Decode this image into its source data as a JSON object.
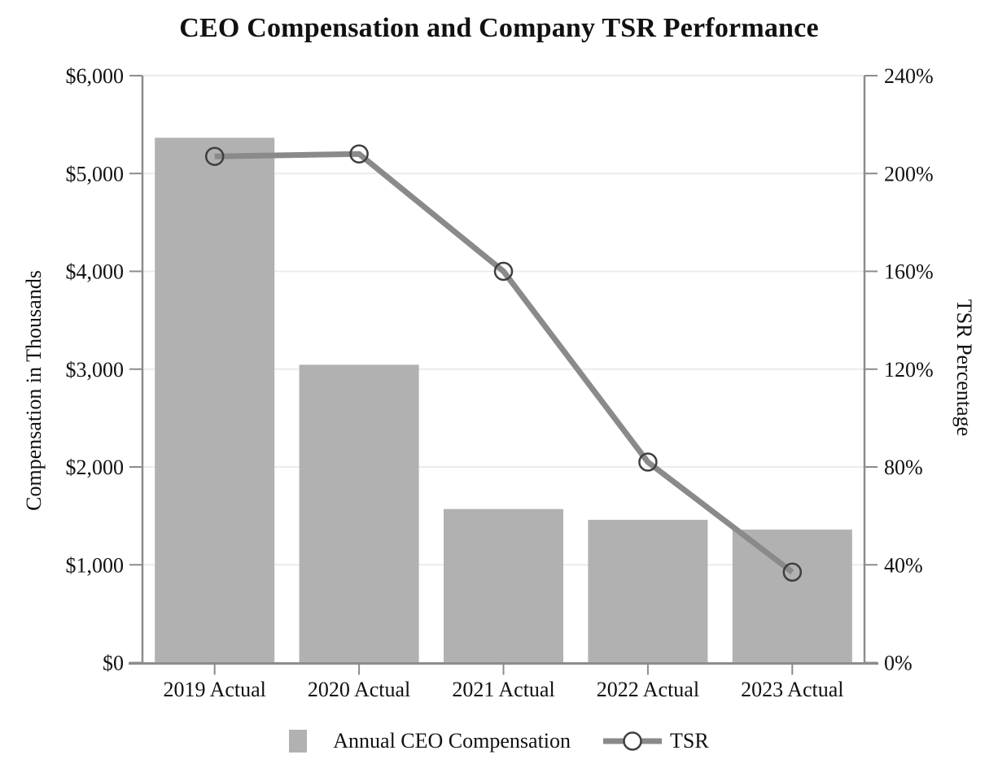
{
  "title": "CEO Compensation and Company TSR Performance",
  "chart_data": {
    "type": "combo",
    "title": "CEO Compensation and Company TSR Performance",
    "categories": [
      "2019 Actual",
      "2020 Actual",
      "2021 Actual",
      "2022 Actual",
      "2023 Actual"
    ],
    "series": [
      {
        "name": "Annual CEO Compensation",
        "type": "bar",
        "axis": "left",
        "units": "USD thousands",
        "values": [
          5365,
          3045,
          1570,
          1460,
          1360
        ]
      },
      {
        "name": "TSR",
        "type": "line",
        "axis": "right",
        "units": "percent",
        "values": [
          207,
          208,
          160,
          82,
          37
        ]
      }
    ],
    "left_ylabel": "Compensation in Thousands",
    "right_ylabel": "TSR Percentage",
    "left_ylim": [
      0,
      6000
    ],
    "right_ylim": [
      0,
      240
    ],
    "left_ticks": [
      {
        "value": 0,
        "label": "$0"
      },
      {
        "value": 1000,
        "label": "$1,000"
      },
      {
        "value": 2000,
        "label": "$2,000"
      },
      {
        "value": 3000,
        "label": "$3,000"
      },
      {
        "value": 4000,
        "label": "$4,000"
      },
      {
        "value": 5000,
        "label": "$5,000"
      },
      {
        "value": 6000,
        "label": "$6,000"
      }
    ],
    "right_ticks": [
      {
        "value": 0,
        "label": "0%"
      },
      {
        "value": 40,
        "label": "40%"
      },
      {
        "value": 80,
        "label": "80%"
      },
      {
        "value": 120,
        "label": "120%"
      },
      {
        "value": 160,
        "label": "160%"
      },
      {
        "value": 200,
        "label": "200%"
      },
      {
        "value": 240,
        "label": "240%"
      }
    ],
    "grid": true,
    "legend_position": "bottom"
  },
  "colors": {
    "bar": "#b1b1b1",
    "line": "#8a8a8a",
    "marker_stroke": "#3f3f3f",
    "marker_fill_legend": "#ffffff",
    "grid": "#ececec",
    "axis": "#8c8c8c",
    "text": "#111111",
    "background": "#ffffff"
  }
}
